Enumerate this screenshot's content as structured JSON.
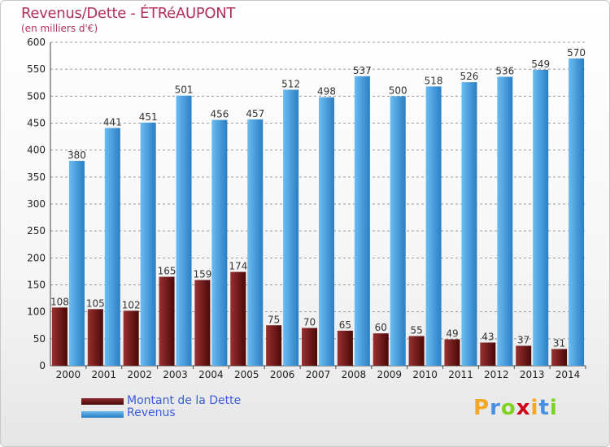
{
  "header": {
    "title": "Revenus/Dette - ÉTRéAUPONT",
    "subtitle": "(en milliers d'€)"
  },
  "logo": {
    "letters": [
      "P",
      "r",
      "o",
      "x",
      "i",
      "t",
      "i"
    ],
    "colors": [
      "#f5a623",
      "#4a90e2",
      "#7ed321",
      "#d0021b",
      "#f5a623",
      "#4a90e2",
      "#7ed321"
    ]
  },
  "chart_data": {
    "type": "bar",
    "categories": [
      "2000",
      "2001",
      "2002",
      "2003",
      "2004",
      "2005",
      "2006",
      "2007",
      "2008",
      "2009",
      "2010",
      "2011",
      "2012",
      "2013",
      "2014"
    ],
    "series": [
      {
        "name": "Montant de la Dette",
        "color": "#7a1a1a",
        "values": [
          108,
          105,
          102,
          165,
          159,
          174,
          75,
          70,
          65,
          60,
          55,
          49,
          43,
          37,
          31
        ]
      },
      {
        "name": "Revenus",
        "color": "#4aa3e6",
        "values": [
          380,
          441,
          451,
          501,
          456,
          457,
          512,
          498,
          537,
          500,
          518,
          526,
          536,
          549,
          570
        ]
      }
    ],
    "ylim": [
      0,
      600
    ],
    "yticks": [
      0,
      50,
      100,
      150,
      200,
      250,
      300,
      350,
      400,
      450,
      500,
      550,
      600
    ],
    "grid": true,
    "legend_position": "bottom-left"
  }
}
